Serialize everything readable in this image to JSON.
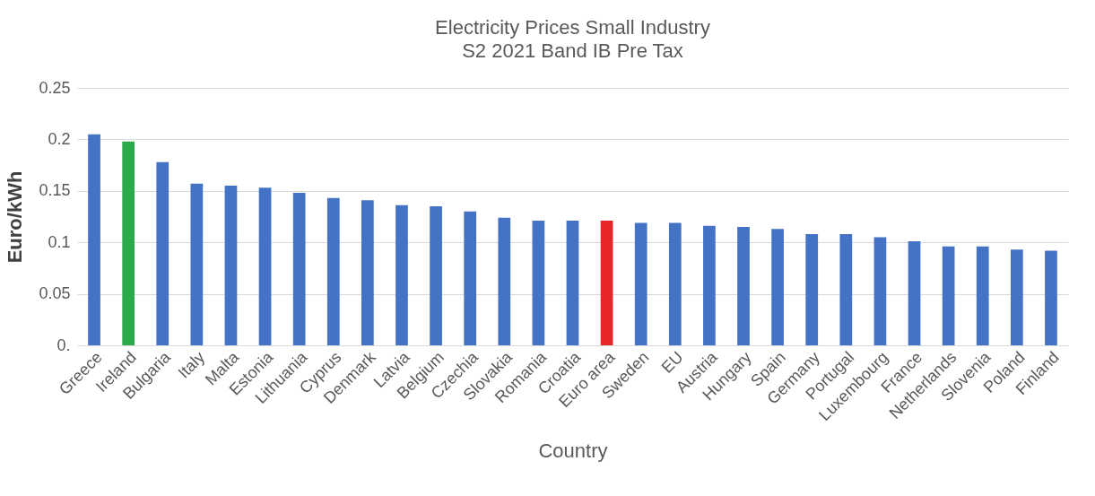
{
  "chart_data": {
    "type": "bar",
    "title": "Electricity Prices Small Industry",
    "subtitle": "S2 2021 Band IB Pre Tax",
    "xlabel": "Country",
    "ylabel": "Euro/kWh",
    "categories": [
      "Greece",
      "Ireland",
      "Bulgaria",
      "Italy",
      "Malta",
      "Estonia",
      "Lithuania",
      "Cyprus",
      "Denmark",
      "Latvia",
      "Belgium",
      "Czechia",
      "Slovakia",
      "Romania",
      "Croatia",
      "Euro area",
      "Sweden",
      "EU",
      "Austria",
      "Hungary",
      "Spain",
      "Germany",
      "Portugal",
      "Luxembourg",
      "France",
      "Netherlands",
      "Slovenia",
      "Poland",
      "Finland"
    ],
    "values": [
      0.205,
      0.198,
      0.178,
      0.157,
      0.155,
      0.153,
      0.148,
      0.143,
      0.141,
      0.136,
      0.135,
      0.13,
      0.124,
      0.121,
      0.121,
      0.121,
      0.119,
      0.119,
      0.116,
      0.115,
      0.113,
      0.108,
      0.108,
      0.105,
      0.101,
      0.096,
      0.096,
      0.093,
      0.092
    ],
    "colors": [
      "#4472c4",
      "#2aaa4a",
      "#4472c4",
      "#4472c4",
      "#4472c4",
      "#4472c4",
      "#4472c4",
      "#4472c4",
      "#4472c4",
      "#4472c4",
      "#4472c4",
      "#4472c4",
      "#4472c4",
      "#4472c4",
      "#4472c4",
      "#e8262a",
      "#4472c4",
      "#4472c4",
      "#4472c4",
      "#4472c4",
      "#4472c4",
      "#4472c4",
      "#4472c4",
      "#4472c4",
      "#4472c4",
      "#4472c4",
      "#4472c4",
      "#4472c4",
      "#4472c4"
    ],
    "ylim": [
      0,
      0.25
    ],
    "yticks": [
      {
        "value": 0,
        "label": "0."
      },
      0.05,
      0.1,
      0.15,
      0.2,
      0.25
    ],
    "grid": "y"
  }
}
